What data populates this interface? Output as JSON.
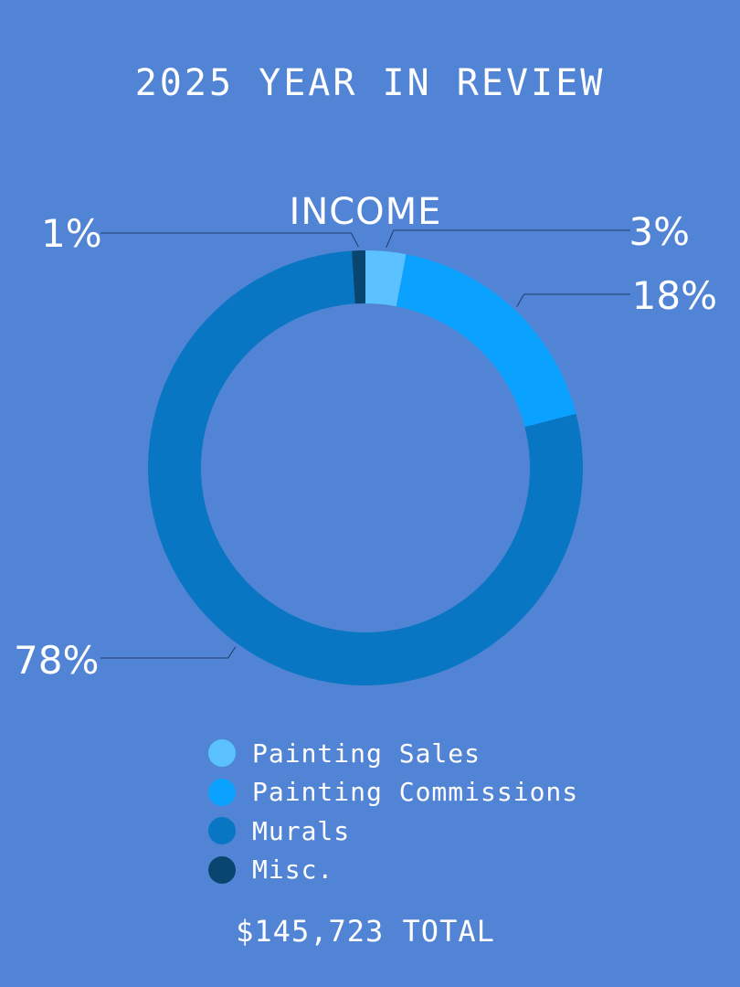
{
  "page_title": "2025 YEAR IN REVIEW",
  "total_label": "$145,723 TOTAL",
  "chart_data": {
    "type": "pie",
    "variant": "donut",
    "title": "INCOME",
    "categories": [
      "Painting Sales",
      "Painting Commissions",
      "Murals",
      "Misc."
    ],
    "values": [
      3,
      18,
      78,
      1
    ],
    "value_labels": [
      "3%",
      "18%",
      "78%",
      "1%"
    ],
    "unit": "%",
    "colors": [
      "#5bc2ff",
      "#0aa1ff",
      "#0876c2",
      "#08466f"
    ],
    "legend_position": "bottom",
    "grid": false
  },
  "theme": {
    "background": "#5284d6",
    "text": "#ffffff",
    "leader_line": "#1f3a66"
  }
}
